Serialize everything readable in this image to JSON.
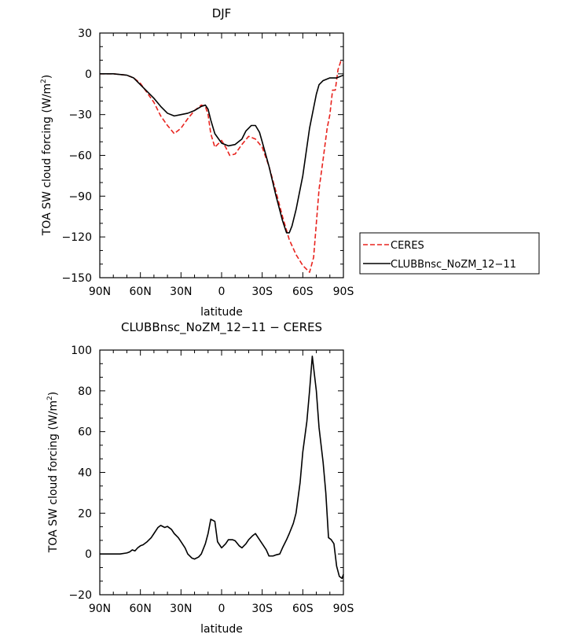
{
  "chart_data": [
    {
      "type": "line",
      "title": "DJF",
      "xlabel": "latitude",
      "ylabel": "TOA SW cloud forcing (W/m²)",
      "ylabel_main": "TOA SW cloud forcing (W/m",
      "ylabel_sup": "2",
      "ylabel_end": ")",
      "xlim": [
        90,
        -90
      ],
      "ylim": [
        -150,
        30
      ],
      "x_ticks": [
        90,
        60,
        30,
        0,
        -30,
        -60,
        -90
      ],
      "x_tick_labels": [
        "90N",
        "60N",
        "30N",
        "0",
        "30S",
        "60S",
        "90S"
      ],
      "y_ticks": [
        -150,
        -120,
        -90,
        -60,
        -30,
        0,
        30
      ],
      "y_tick_labels": [
        "−150",
        "−120",
        "−90",
        "−60",
        "−30",
        "0",
        "30"
      ],
      "series": [
        {
          "name": "CERES",
          "color": "#e8231e",
          "dash": "dashed",
          "x": [
            90,
            80,
            70,
            65,
            60,
            55,
            50,
            45,
            40,
            35,
            30,
            25,
            20,
            15,
            12,
            10,
            8,
            5,
            0,
            -3,
            -6,
            -10,
            -15,
            -20,
            -25,
            -30,
            -35,
            -40,
            -45,
            -50,
            -55,
            -60,
            -65,
            -68,
            -70,
            -72,
            -75,
            -78,
            -80,
            -82,
            -84,
            -86,
            -88,
            -90
          ],
          "y": [
            0,
            0,
            -1,
            -3,
            -7,
            -14,
            -21,
            -31,
            -38,
            -44,
            -40,
            -33,
            -27,
            -23,
            -24,
            -30,
            -44,
            -54,
            -49,
            -54,
            -60,
            -59,
            -52,
            -46,
            -48,
            -54,
            -68,
            -86,
            -105,
            -122,
            -133,
            -141,
            -146,
            -135,
            -110,
            -85,
            -63,
            -40,
            -30,
            -12,
            -12,
            3,
            9,
            8
          ]
        },
        {
          "name": "CLUBBnsc_NoZM_12-11",
          "color": "#000000",
          "dash": "solid",
          "x": [
            90,
            80,
            70,
            65,
            60,
            55,
            50,
            45,
            40,
            35,
            30,
            25,
            20,
            15,
            12,
            10,
            8,
            5,
            0,
            -5,
            -10,
            -15,
            -18,
            -22,
            -25,
            -28,
            -30,
            -35,
            -40,
            -45,
            -48,
            -50,
            -52,
            -55,
            -60,
            -65,
            -68,
            -70,
            -72,
            -75,
            -80,
            -85,
            -90
          ],
          "y": [
            0,
            0,
            -1,
            -3,
            -8,
            -13,
            -18,
            -24,
            -29,
            -31,
            -30,
            -29,
            -27,
            -24,
            -23,
            -26,
            -34,
            -44,
            -51,
            -53,
            -52,
            -48,
            -42,
            -38,
            -38,
            -43,
            -50,
            -68,
            -89,
            -108,
            -117,
            -117,
            -112,
            -100,
            -75,
            -40,
            -25,
            -15,
            -8,
            -5,
            -3,
            -3,
            -1
          ]
        }
      ],
      "legend": {
        "position": "right",
        "entries": [
          "CERES",
          "CLUBBnsc_NoZM_12−11"
        ]
      }
    },
    {
      "type": "line",
      "title": "CLUBBnsc_NoZM_12−11 − CERES",
      "xlabel": "latitude",
      "ylabel": "TOA SW cloud forcing (W/m²)",
      "ylabel_main": "TOA SW cloud forcing (W/m",
      "ylabel_sup": "2",
      "ylabel_end": ")",
      "xlim": [
        90,
        -90
      ],
      "ylim": [
        -20,
        100
      ],
      "x_ticks": [
        90,
        60,
        30,
        0,
        -30,
        -60,
        -90
      ],
      "x_tick_labels": [
        "90N",
        "60N",
        "30N",
        "0",
        "30S",
        "60S",
        "90S"
      ],
      "y_ticks": [
        -20,
        0,
        20,
        40,
        60,
        80,
        100
      ],
      "y_tick_labels": [
        "−20",
        "0",
        "20",
        "40",
        "60",
        "80",
        "100"
      ],
      "series": [
        {
          "color": "#000000",
          "dash": "solid",
          "x": [
            90,
            80,
            75,
            70,
            68,
            66,
            64,
            62,
            60,
            58,
            55,
            52,
            50,
            47,
            45,
            42,
            40,
            37,
            35,
            32,
            30,
            27,
            25,
            22,
            20,
            17,
            15,
            12,
            10,
            8,
            5,
            3,
            0,
            -3,
            -5,
            -8,
            -10,
            -13,
            -15,
            -18,
            -20,
            -23,
            -25,
            -27,
            -30,
            -33,
            -35,
            -38,
            -40,
            -43,
            -45,
            -48,
            -50,
            -53,
            -55,
            -58,
            -60,
            -63,
            -65,
            -67,
            -70,
            -72,
            -75,
            -77,
            -79,
            -81,
            -83,
            -85,
            -87,
            -89,
            -90
          ],
          "y": [
            0,
            0,
            0,
            0.5,
            1,
            2,
            1.5,
            3,
            4,
            4.5,
            6,
            8,
            10,
            13,
            14,
            13,
            13.5,
            12,
            10,
            8,
            6,
            3,
            0,
            -2,
            -2.5,
            -1.5,
            0,
            5,
            10,
            17,
            16,
            6,
            3,
            5,
            7,
            7,
            6.5,
            4,
            3,
            5,
            7,
            9,
            10,
            8,
            5,
            2,
            -1,
            -1,
            -0.5,
            0,
            3,
            7,
            10,
            15,
            20,
            35,
            50,
            65,
            80,
            97,
            80,
            62,
            45,
            30,
            8,
            7,
            5,
            -6,
            -11,
            -12,
            -10
          ]
        }
      ]
    }
  ]
}
